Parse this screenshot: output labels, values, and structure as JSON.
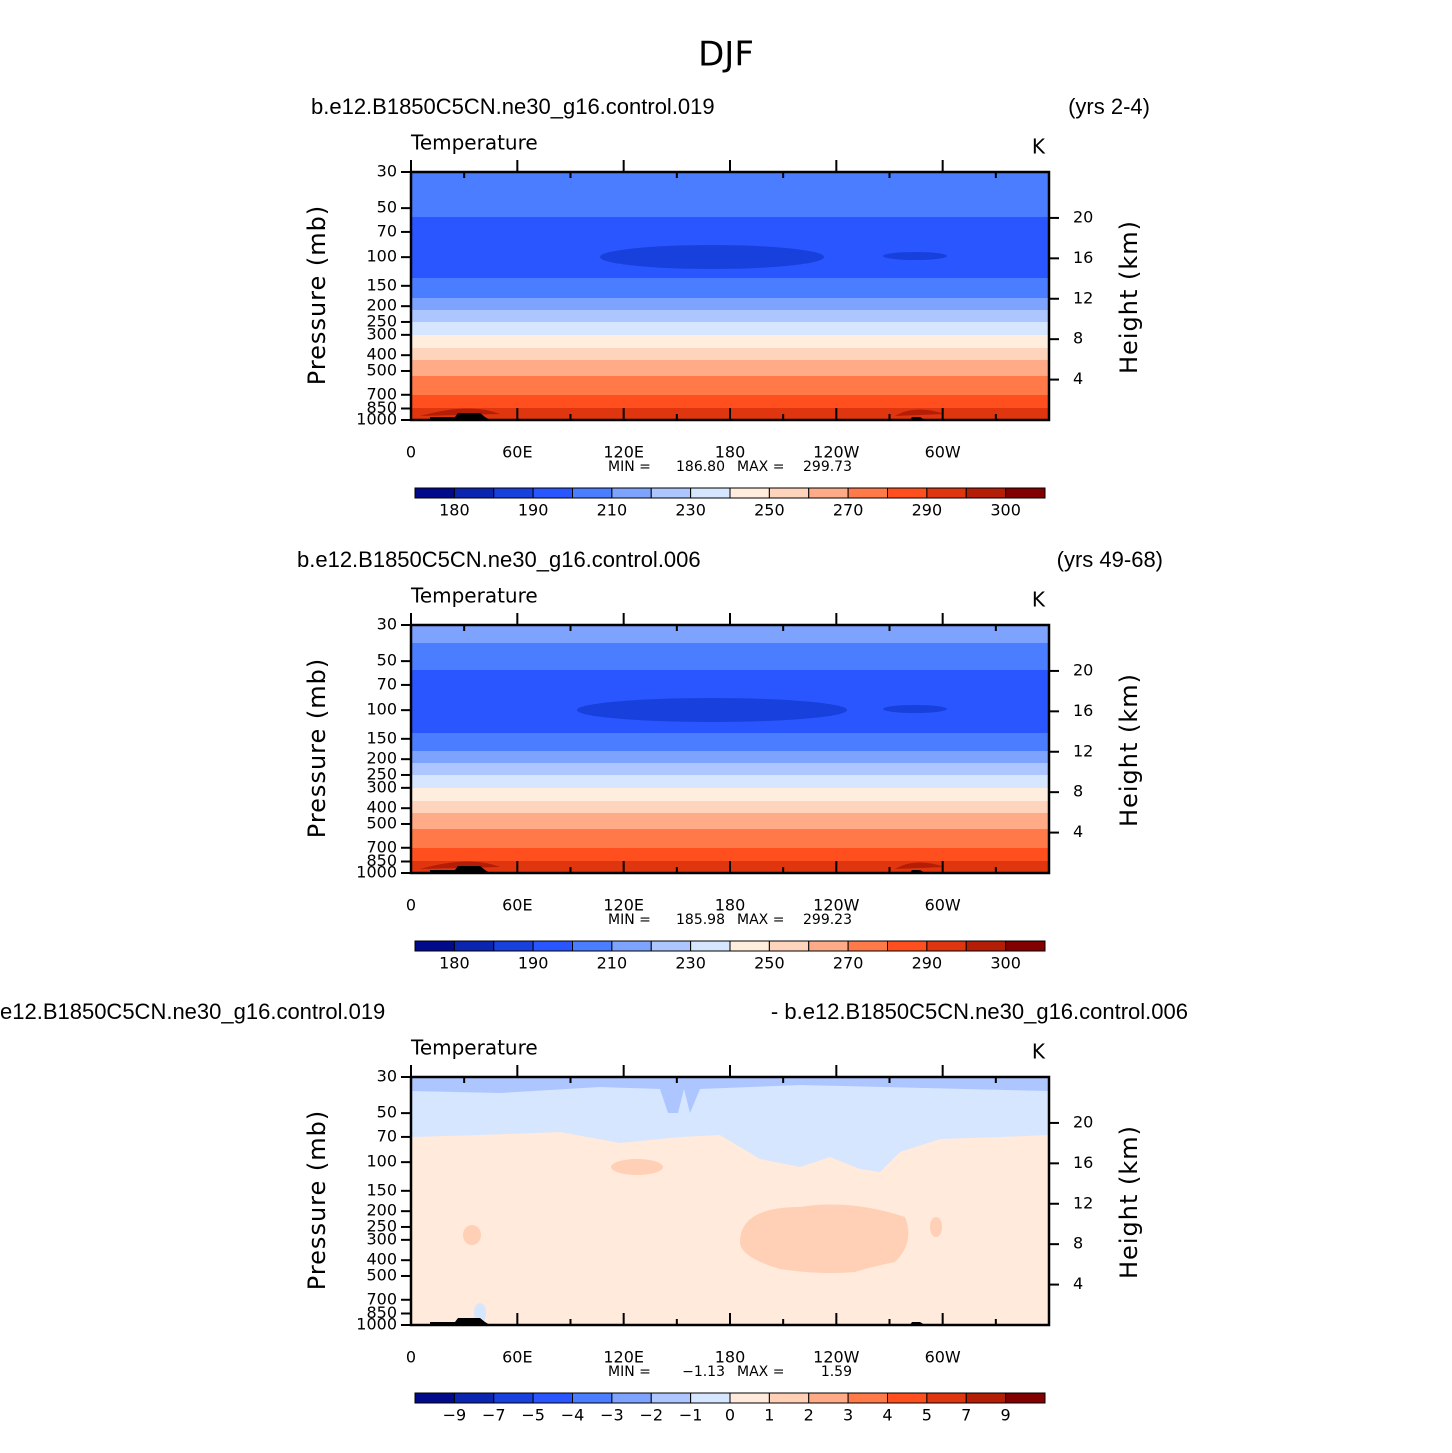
{
  "title": "DJF",
  "chart_data": [
    {
      "type": "contour",
      "left_label": "b.e12.B1850C5CN.ne30_g16.control.019",
      "right_label": "(yrs 2-4)",
      "variable": "Temperature",
      "units": "K",
      "y_label": "Pressure (mb)",
      "y2_label": "Height (km)",
      "log_y": true,
      "ylim": [
        30,
        1000
      ],
      "yticks": [
        30,
        50,
        70,
        100,
        150,
        200,
        250,
        300,
        400,
        500,
        700,
        850,
        1000
      ],
      "y2ticks": [
        4,
        8,
        12,
        16,
        20
      ],
      "xlim": [
        0,
        360
      ],
      "xticks": [
        0,
        {
          "value": 60,
          "label": "60E"
        },
        {
          "value": 120,
          "label": "120E"
        },
        180,
        {
          "value": 240,
          "label": "120W"
        },
        {
          "value": 300,
          "label": "60W"
        }
      ],
      "min_label": "MIN =",
      "max_label": "MAX =",
      "min": 186.8,
      "max": 299.73,
      "value_labels": {
        "min": "186.80",
        "max": "299.73"
      },
      "levels": [
        180,
        null,
        190,
        null,
        210,
        null,
        230,
        null,
        250,
        null,
        270,
        null,
        290,
        null,
        300
      ],
      "colors": [
        "#000a8a",
        "#0a26b0",
        "#1840dc",
        "#2a56ff",
        "#4a7dff",
        "#7ea3ff",
        "#adc6ff",
        "#d6e6ff",
        "#ffeedd",
        "#ffd4bc",
        "#ffab87",
        "#ff7a48",
        "#ff4f1f",
        "#e0360f",
        "#b41e06",
        "#820000"
      ]
    },
    {
      "type": "contour",
      "left_label": "b.e12.B1850C5CN.ne30_g16.control.006",
      "right_label": "(yrs 49-68)",
      "variable": "Temperature",
      "units": "K",
      "y_label": "Pressure (mb)",
      "y2_label": "Height (km)",
      "log_y": true,
      "ylim": [
        30,
        1000
      ],
      "yticks": [
        30,
        50,
        70,
        100,
        150,
        200,
        250,
        300,
        400,
        500,
        700,
        850,
        1000
      ],
      "y2ticks": [
        4,
        8,
        12,
        16,
        20
      ],
      "xlim": [
        0,
        360
      ],
      "xticks": [
        0,
        {
          "value": 60,
          "label": "60E"
        },
        {
          "value": 120,
          "label": "120E"
        },
        180,
        {
          "value": 240,
          "label": "120W"
        },
        {
          "value": 300,
          "label": "60W"
        }
      ],
      "min_label": "MIN =",
      "max_label": "MAX =",
      "min": 185.98,
      "max": 299.23,
      "value_labels": {
        "min": "185.98",
        "max": "299.23"
      },
      "levels": [
        180,
        null,
        190,
        null,
        210,
        null,
        230,
        null,
        250,
        null,
        270,
        null,
        290,
        null,
        300
      ],
      "colors": [
        "#000a8a",
        "#0a26b0",
        "#1840dc",
        "#2a56ff",
        "#4a7dff",
        "#7ea3ff",
        "#adc6ff",
        "#d6e6ff",
        "#ffeedd",
        "#ffd4bc",
        "#ffab87",
        "#ff7a48",
        "#ff4f1f",
        "#e0360f",
        "#b41e06",
        "#820000"
      ]
    },
    {
      "type": "contour_diff",
      "left_label": "e12.B1850C5CN.ne30_g16.control.019",
      "right_label": "- b.e12.B1850C5CN.ne30_g16.control.006",
      "variable": "Temperature",
      "units": "K",
      "y_label": "Pressure (mb)",
      "y2_label": "Height (km)",
      "log_y": true,
      "ylim": [
        30,
        1000
      ],
      "yticks": [
        30,
        50,
        70,
        100,
        150,
        200,
        250,
        300,
        400,
        500,
        700,
        850,
        1000
      ],
      "y2ticks": [
        4,
        8,
        12,
        16,
        20
      ],
      "xlim": [
        0,
        360
      ],
      "xticks": [
        0,
        {
          "value": 60,
          "label": "60E"
        },
        {
          "value": 120,
          "label": "120E"
        },
        180,
        {
          "value": 240,
          "label": "120W"
        },
        {
          "value": 300,
          "label": "60W"
        }
      ],
      "min_label": "MIN =",
      "max_label": "MAX =",
      "min": -1.13,
      "max": 1.59,
      "value_labels": {
        "min": "−1.13",
        "max": "1.59"
      },
      "levels": [
        {
          "value": -9,
          "label": "−9"
        },
        {
          "value": -7,
          "label": "−7"
        },
        {
          "value": -5,
          "label": "−5"
        },
        {
          "value": -4,
          "label": "−4"
        },
        {
          "value": -3,
          "label": "−3"
        },
        {
          "value": -2,
          "label": "−2"
        },
        {
          "value": -1,
          "label": "−1"
        },
        0,
        1,
        2,
        3,
        4,
        5,
        7,
        9
      ],
      "colors": [
        "#000a8a",
        "#0a26b0",
        "#1840dc",
        "#2a56ff",
        "#4a7dff",
        "#7ea3ff",
        "#adc6ff",
        "#d6e6ff",
        "#ffeadb",
        "#ffcfb6",
        "#ffab87",
        "#ff7a48",
        "#ff4f1f",
        "#e0360f",
        "#b41e06",
        "#820000"
      ]
    }
  ]
}
